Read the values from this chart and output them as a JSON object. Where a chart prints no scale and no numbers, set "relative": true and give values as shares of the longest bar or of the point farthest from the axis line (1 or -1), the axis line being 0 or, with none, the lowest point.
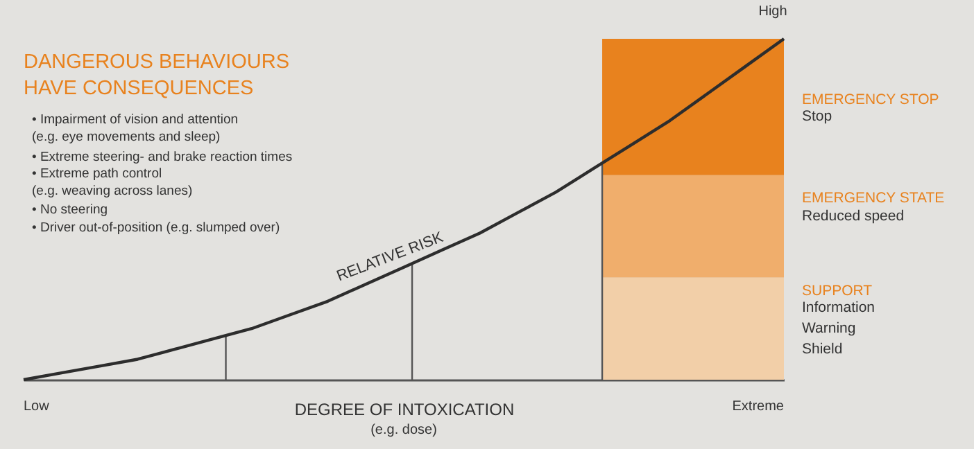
{
  "chart_data": {
    "type": "line",
    "relative": true,
    "title": "DANGEROUS BEHAVIOURS\nHAVE CONSEQUENCES",
    "xlabel": "DEGREE OF INTOXICATION",
    "categories": [
      null,
      null,
      null,
      null,
      null,
      null,
      null,
      null,
      null,
      null,
      null,
      null,
      null,
      null,
      null,
      null,
      null,
      null,
      null,
      null,
      null
    ],
    "tick_labels": false,
    "series": [
      {
        "color": "#2d2d2d",
        "values": [
          0,
          0.02,
          0.04,
          0.06,
          0.09,
          0.12,
          0.15,
          0.19,
          0.23,
          0.28,
          0.33,
          0.38,
          0.43,
          0.49,
          0.55,
          0.62,
          0.69,
          0.76,
          0.84,
          0.92,
          1
        ]
      }
    ],
    "marker": "none",
    "line_style": "solid",
    "grid": false,
    "bands": [
      {
        "axis": "y",
        "from": 0,
        "to": 0.3,
        "label": "SUPPORT",
        "color": "#f2cfa8"
      },
      {
        "axis": "y",
        "from": 0.3,
        "to": 0.6,
        "label": "EMERGENCY STATE",
        "color": "#f0ae6c"
      },
      {
        "axis": "y",
        "from": 0.6,
        "to": 1,
        "label": "EMERGENCY STOP",
        "color": "#e8821e"
      }
    ],
    "annotations": [
      "• Impairment of vision and attention\n(e.g. eye movements and sleep)",
      "• Extreme steering- and brake reaction times",
      "• Extreme path control\n(e.g. weaving across lanes)",
      "• No steering",
      "• Driver out-of-position (e.g. slumped over)",
      "(e.g. dose)",
      "Stop",
      "Reduced speed",
      "Information\nWarning\nShield",
      "High",
      "RELATIVE RISK",
      "Low",
      "Extreme"
    ]
  }
}
